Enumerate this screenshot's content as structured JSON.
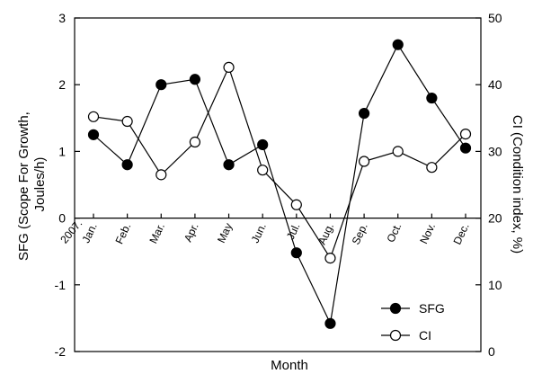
{
  "chart_data": {
    "type": "line",
    "categories": [
      "Jan.",
      "Feb.",
      "Mar.",
      "Apr.",
      "May",
      "Jun.",
      "Jul.",
      "Aug.",
      "Sep.",
      "Oct.",
      "Nov.",
      "Dec."
    ],
    "year_label": "2007.",
    "xlabel": "Month",
    "ylabel_left": "SFG (Scope For Growth, Joules/h)",
    "ylabel_left_lines": [
      "SFG (Scope For Growth,",
      "Joules/h)"
    ],
    "ylabel_right": "CI (Condition index, %)",
    "ylim_left": [
      -2,
      3
    ],
    "ylim_right": [
      0,
      50
    ],
    "yticks_left": [
      -2,
      -1,
      0,
      1,
      2,
      3
    ],
    "yticks_right": [
      0,
      10,
      20,
      30,
      40,
      50
    ],
    "series": [
      {
        "name": "SFG",
        "axis": "left",
        "marker": "filled-circle",
        "color": "#000000",
        "values": [
          1.25,
          0.8,
          2.0,
          2.08,
          0.8,
          1.1,
          -0.52,
          -1.58,
          1.57,
          2.6,
          1.8,
          1.05
        ]
      },
      {
        "name": "CI",
        "axis": "right",
        "marker": "open-circle",
        "color": "#000000",
        "values": [
          35.2,
          34.5,
          26.5,
          31.4,
          42.6,
          27.2,
          22.0,
          14.0,
          28.5,
          30.0,
          27.6,
          32.6
        ]
      }
    ],
    "grid": false,
    "legend": "bottom-right"
  }
}
